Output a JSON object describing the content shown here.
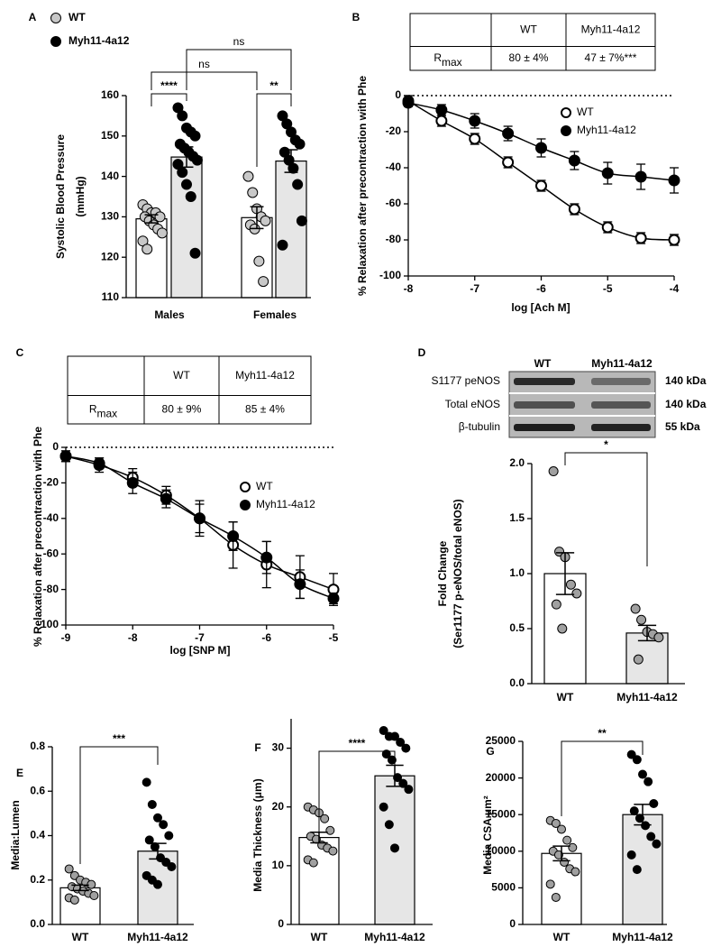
{
  "chart_data": [
    {
      "type": "bar",
      "panel": "A",
      "y_label": [
        "Systolic Blood Pressure",
        "(mmHg)"
      ],
      "categories": [
        "Males",
        "Females"
      ],
      "series": [
        {
          "name": "WT",
          "color": "#ffffff",
          "point_color": "#c8c8c8",
          "values": [
            129.5,
            129.8
          ],
          "errors": [
            1.0,
            2.7
          ],
          "points": [
            [
              133,
              132,
              131,
              131,
              130,
              130,
              129,
              128,
              127,
              126,
              124,
              122
            ],
            [
              140,
              136,
              132,
              130,
              129,
              128,
              127,
              119,
              114
            ]
          ]
        },
        {
          "name": "Myh11-4a12",
          "color": "#e6e6e6",
          "point_color": "#000000",
          "values": [
            144.8,
            143.8
          ],
          "errors": [
            2.5,
            2.8
          ],
          "points": [
            [
              157,
              155,
              152,
              151,
              150,
              148,
              147,
              146,
              145,
              144,
              143,
              141,
              138,
              135,
              121
            ],
            [
              155,
              153,
              151,
              149,
              148,
              146,
              144,
              142,
              138,
              129,
              123
            ]
          ]
        }
      ],
      "ylim": [
        110,
        160
      ],
      "yticks": [
        110,
        120,
        130,
        140,
        150,
        160
      ],
      "significance": [
        "****",
        "**",
        "ns",
        "ns"
      ],
      "legend": "top-left"
    },
    {
      "type": "line",
      "panel": "B",
      "x_label": "log [Ach M]",
      "y_label": "% Relaxation after precontraction with Phe",
      "x": [
        -8,
        -7.5,
        -7,
        -6.5,
        -6,
        -5.5,
        -5,
        -4.5,
        -4
      ],
      "series": [
        {
          "name": "WT",
          "color": "#000000",
          "marker_fill": "#ffffff",
          "values": [
            -3,
            -14,
            -24,
            -37,
            -50,
            -63,
            -73,
            -79,
            -80
          ],
          "errors": [
            3,
            3,
            3,
            3,
            3,
            3,
            3,
            3,
            3
          ]
        },
        {
          "name": "Myh11-4a12",
          "color": "#000000",
          "marker_fill": "#000000",
          "values": [
            -4,
            -8,
            -14,
            -21,
            -29,
            -36,
            -43,
            -45,
            -47
          ],
          "errors": [
            2,
            3,
            4,
            4,
            5,
            5,
            6,
            7,
            7
          ]
        }
      ],
      "xlim": [
        -8,
        -4
      ],
      "xticks": [
        -8,
        -7,
        -6,
        -5,
        -4
      ],
      "ylim": [
        -100,
        0
      ],
      "yticks": [
        -100,
        -80,
        -60,
        -40,
        -20,
        0
      ],
      "legend": "upper-right",
      "table": {
        "columns": [
          "WT",
          "Myh11-4a12"
        ],
        "row_label": {
          "base": "R",
          "sub": "max"
        },
        "values": [
          "80 ± 4%",
          "47 ± 7%***"
        ]
      }
    },
    {
      "type": "line",
      "panel": "C",
      "x_label": "log [SNP M]",
      "y_label": "% Relaxation after precontraction with Phe",
      "x": [
        -9,
        -8.5,
        -8,
        -7.5,
        -7,
        -6.5,
        -6,
        -5.5,
        -5
      ],
      "series": [
        {
          "name": "WT",
          "color": "#000000",
          "marker_fill": "#ffffff",
          "values": [
            -5,
            -10,
            -17,
            -27,
            -40,
            -55,
            -66,
            -73,
            -80
          ],
          "errors": [
            3,
            4,
            5,
            5,
            8,
            13,
            13,
            12,
            9
          ]
        },
        {
          "name": "Myh11-4a12",
          "color": "#000000",
          "marker_fill": "#000000",
          "values": [
            -5,
            -9,
            -20,
            -29,
            -40,
            -50,
            -62,
            -77,
            -85
          ],
          "errors": [
            3,
            3,
            6,
            5,
            10,
            8,
            9,
            8,
            3
          ]
        }
      ],
      "xlim": [
        -9,
        -5
      ],
      "xticks": [
        -9,
        -8,
        -7,
        -6,
        -5
      ],
      "ylim": [
        -100,
        0
      ],
      "yticks": [
        -100,
        -80,
        -60,
        -40,
        -20,
        0
      ],
      "legend": "upper-right",
      "table": {
        "columns": [
          "WT",
          "Myh11-4a12"
        ],
        "row_label": {
          "base": "R",
          "sub": "max"
        },
        "values": [
          "80 ± 9%",
          "85 ± 4%"
        ]
      }
    },
    {
      "type": "bar",
      "panel": "D",
      "y_label": [
        "Fold Change",
        "(Ser1177 p-eNOS/total eNOS)"
      ],
      "blot": {
        "lanes": [
          "WT",
          "Myh11-4a12"
        ],
        "bands": [
          "S1177 peNOS",
          "Total eNOS",
          "β-tubulin"
        ],
        "sizes": [
          "140 kDa",
          "140 kDa",
          "55 kDa"
        ]
      },
      "categories": [
        "WT",
        "Myh11-4a12"
      ],
      "values": [
        1.0,
        0.46
      ],
      "errors": [
        0.19,
        0.07
      ],
      "colors": [
        "#ffffff",
        "#e6e6e6"
      ],
      "point_colors": [
        "#a0a0a0",
        "#a0a0a0"
      ],
      "points": [
        [
          1.93,
          1.2,
          1.15,
          0.9,
          0.82,
          0.72,
          0.5
        ],
        [
          0.68,
          0.58,
          0.47,
          0.45,
          0.42,
          0.22
        ]
      ],
      "ylim": [
        0,
        2
      ],
      "yticks": [
        {
          "value": 0,
          "label": "0.0"
        },
        0.5,
        {
          "value": 1,
          "label": "1.0"
        },
        1.5,
        {
          "value": 2,
          "label": "2.0"
        }
      ],
      "significance": [
        "*"
      ]
    },
    {
      "type": "bar",
      "panel": "E",
      "y_label": [
        "Media:Lumen"
      ],
      "categories": [
        "WT",
        "Myh11-4a12"
      ],
      "values": [
        0.165,
        0.33
      ],
      "errors": [
        0.012,
        0.035
      ],
      "colors": [
        "#ffffff",
        "#e6e6e6"
      ],
      "point_colors": [
        "#a0a0a0",
        "#000000"
      ],
      "points": [
        [
          0.25,
          0.22,
          0.2,
          0.19,
          0.18,
          0.17,
          0.16,
          0.15,
          0.14,
          0.13,
          0.12,
          0.11
        ],
        [
          0.64,
          0.54,
          0.48,
          0.45,
          0.4,
          0.38,
          0.35,
          0.3,
          0.28,
          0.26,
          0.22,
          0.2,
          0.18
        ]
      ],
      "ylim": [
        0,
        0.8
      ],
      "yticks": [
        {
          "value": 0,
          "label": "0.0"
        },
        0.2,
        0.4,
        0.6,
        0.8
      ],
      "significance": [
        "***"
      ]
    },
    {
      "type": "bar",
      "panel": "F",
      "y_label": [
        "Media Thickness (μm)"
      ],
      "categories": [
        "WT",
        "Myh11-4a12"
      ],
      "values": [
        14.8,
        25.3
      ],
      "errors": [
        0.9,
        1.8
      ],
      "colors": [
        "#ffffff",
        "#e6e6e6"
      ],
      "point_colors": [
        "#a0a0a0",
        "#000000"
      ],
      "points": [
        [
          20,
          19.5,
          19,
          18,
          16,
          15,
          14.5,
          13.5,
          13,
          12.5,
          11,
          10.5
        ],
        [
          33,
          32,
          32,
          31,
          30,
          29,
          28,
          25,
          24,
          23,
          20,
          17,
          13
        ]
      ],
      "ylim": [
        0,
        35
      ],
      "yticks": [
        0,
        10,
        20,
        30
      ],
      "significance": [
        "****"
      ]
    },
    {
      "type": "bar",
      "panel": "G",
      "y_label": [
        "Media CSA μm²"
      ],
      "categories": [
        "WT",
        "Myh11-4a12"
      ],
      "values": [
        9700,
        15000
      ],
      "errors": [
        1000,
        1400
      ],
      "colors": [
        "#ffffff",
        "#e6e6e6"
      ],
      "point_colors": [
        "#a0a0a0",
        "#000000"
      ],
      "points": [
        [
          14200,
          13800,
          13000,
          11500,
          10500,
          10000,
          9500,
          8500,
          7600,
          7200,
          5500,
          3700
        ],
        [
          23200,
          22500,
          20500,
          19500,
          16500,
          15500,
          14500,
          13500,
          12000,
          11000,
          9500,
          7500
        ]
      ],
      "ylim": [
        0,
        25000
      ],
      "yticks": [
        0,
        5000,
        10000,
        15000,
        20000,
        25000
      ],
      "significance": [
        "**"
      ]
    }
  ]
}
